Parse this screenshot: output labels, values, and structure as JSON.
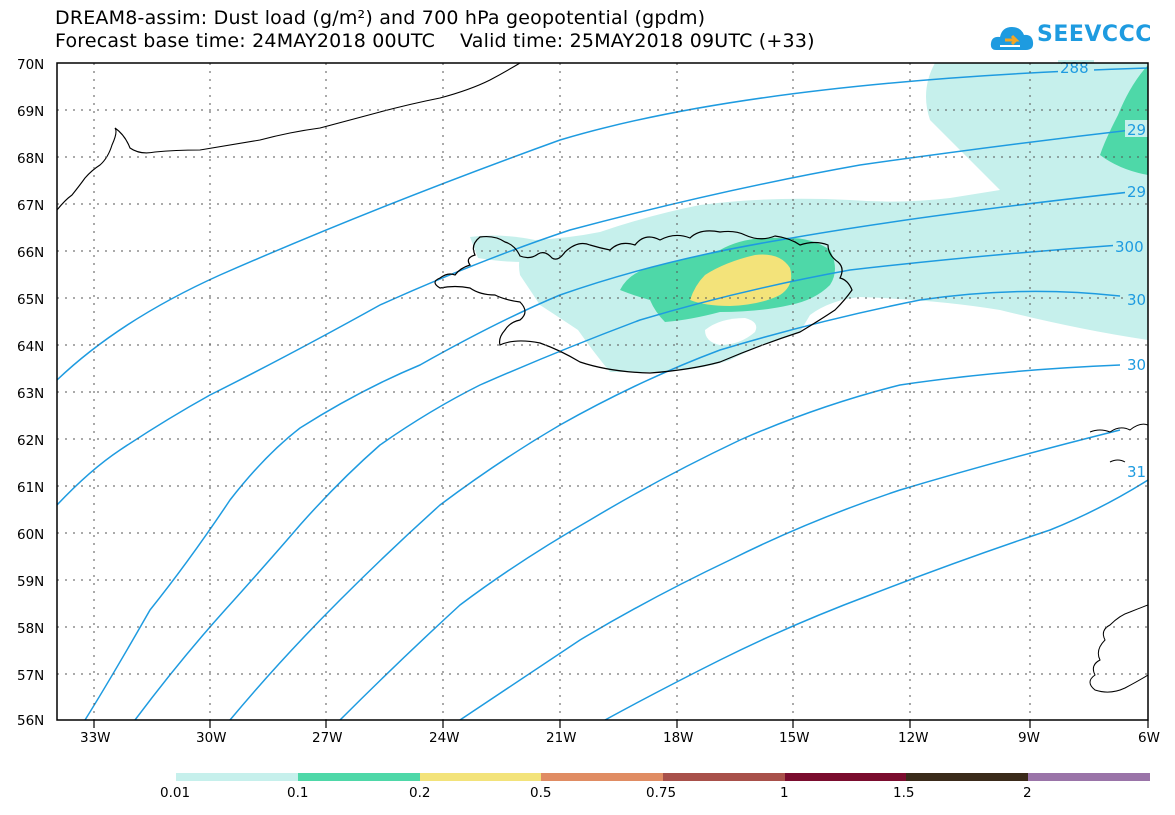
{
  "title": {
    "line1": "DREAM8-assim: Dust load (g/m²) and 700 hPa geopotential (gpdm)",
    "line2": "Forecast base time: 24MAY2018 00UTC    Valid time: 25MAY2018 09UTC (+33)"
  },
  "logo": {
    "text": "SEEVCCC",
    "color": "#1e9be0"
  },
  "map": {
    "lat_labels": [
      "70N",
      "69N",
      "68N",
      "67N",
      "66N",
      "65N",
      "64N",
      "63N",
      "62N",
      "61N",
      "60N",
      "59N",
      "58N",
      "57N",
      "56N"
    ],
    "lon_labels": [
      "33W",
      "30W",
      "27W",
      "24W",
      "21W",
      "18W",
      "15W",
      "12W",
      "9W",
      "6W"
    ],
    "lon_range": [
      -34,
      -6
    ],
    "lat_range": [
      56,
      70
    ],
    "contour_color": "#1e9be0",
    "contour_labels": [
      "288",
      "29",
      "29",
      "300",
      "30",
      "30",
      "31"
    ]
  },
  "colorbar": {
    "labels": [
      "0.01",
      "0.1",
      "0.2",
      "0.5",
      "0.75",
      "1",
      "1.5",
      "2"
    ],
    "colors": [
      "#c6f0ec",
      "#4ed8a8",
      "#f3e37a",
      "#e08c63",
      "#a8504a",
      "#7a0c2e",
      "#3a2a1a",
      "#9a74a8"
    ]
  }
}
